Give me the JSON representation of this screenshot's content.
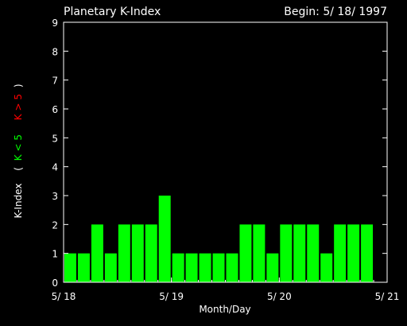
{
  "chart_data": {
    "type": "bar",
    "title": "Planetary K-Index",
    "begin_label": "Begin: 5/ 18/ 1997",
    "xlabel": "Month/Day",
    "ylabel": {
      "main": "K-Index",
      "open": "(",
      "low": "K < 5",
      "high": "K > 5",
      "close": ")"
    },
    "ylim": [
      0,
      9
    ],
    "yticks": [
      "0",
      "1",
      "2",
      "3",
      "4",
      "5",
      "6",
      "7",
      "8",
      "9"
    ],
    "xlim": [
      0,
      24
    ],
    "xticks": [
      {
        "label": "5/ 18",
        "value": 0
      },
      {
        "label": "5/ 19",
        "value": 8
      },
      {
        "label": "5/ 20",
        "value": 16
      },
      {
        "label": "5/ 21",
        "value": 24
      }
    ],
    "values": [
      1,
      1,
      2,
      1,
      2,
      2,
      2,
      3,
      1,
      1,
      1,
      1,
      1,
      2,
      2,
      1,
      2,
      2,
      2,
      1,
      2,
      2,
      2
    ],
    "colors": {
      "bar_low": "#00ff00",
      "bar_high": "#ff0000",
      "label_low": "#00ff00",
      "label_high": "#ff0000",
      "axes": "#ffffff",
      "background": "#000000"
    }
  }
}
